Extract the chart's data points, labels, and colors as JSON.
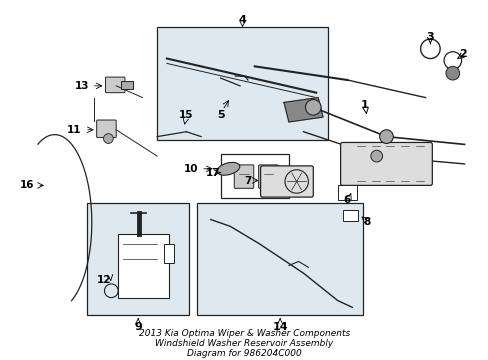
{
  "bg_color": "#ffffff",
  "line_color": "#222222",
  "box_bg": "#dde8f0",
  "title": "2013 Kia Optima Wiper & Washer Components\nWindshield Washer Reservoir Assembly\nDiagram for 986204C000",
  "title_fontsize": 6.5,
  "figsize": [
    4.89,
    3.6
  ],
  "dpi": 100
}
